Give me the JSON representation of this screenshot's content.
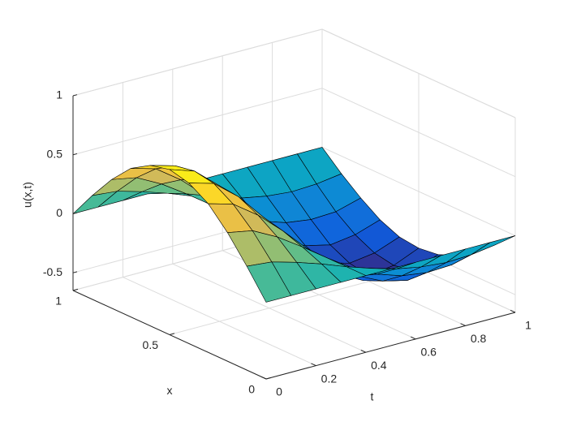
{
  "chart_data": {
    "type": "surface",
    "xlabel": "x",
    "ylabel": "t",
    "zlabel": "u(x,t)",
    "x": [
      0,
      0.1,
      0.2,
      0.3,
      0.4,
      0.5,
      0.6,
      0.7,
      0.8,
      0.9,
      1
    ],
    "y": [
      0,
      0.1,
      0.2,
      0.3,
      0.4,
      0.5,
      0.6,
      0.7,
      0.8,
      0.9,
      1
    ],
    "z": [
      [
        0,
        0,
        0,
        0,
        0,
        0,
        0,
        0,
        0,
        0,
        0
      ],
      [
        0.23,
        0.21,
        0.15,
        0.08,
        0,
        -0.07,
        -0.13,
        -0.17,
        -0.19,
        -0.18,
        -0.15
      ],
      [
        0.44,
        0.4,
        0.29,
        0.15,
        0,
        -0.14,
        -0.25,
        -0.32,
        -0.35,
        -0.34,
        -0.28
      ],
      [
        0.61,
        0.55,
        0.4,
        0.21,
        0,
        -0.19,
        -0.34,
        -0.44,
        -0.49,
        -0.46,
        -0.39
      ],
      [
        0.71,
        0.65,
        0.48,
        0.25,
        0,
        -0.23,
        -0.4,
        -0.51,
        -0.57,
        -0.54,
        -0.46
      ],
      [
        0.75,
        0.68,
        0.5,
        0.26,
        0,
        -0.24,
        -0.42,
        -0.54,
        -0.6,
        -0.57,
        -0.48
      ],
      [
        0.71,
        0.65,
        0.48,
        0.25,
        0,
        -0.23,
        -0.4,
        -0.51,
        -0.57,
        -0.54,
        -0.46
      ],
      [
        0.61,
        0.55,
        0.4,
        0.21,
        0,
        -0.19,
        -0.34,
        -0.44,
        -0.49,
        -0.46,
        -0.39
      ],
      [
        0.44,
        0.4,
        0.29,
        0.15,
        0,
        -0.14,
        -0.25,
        -0.32,
        -0.35,
        -0.34,
        -0.28
      ],
      [
        0.23,
        0.21,
        0.15,
        0.08,
        0,
        -0.07,
        -0.13,
        -0.17,
        -0.19,
        -0.18,
        -0.15
      ],
      [
        0,
        0,
        0,
        0,
        0,
        0,
        0,
        0,
        0,
        0,
        0
      ]
    ],
    "xlim": [
      0,
      1
    ],
    "ylim": [
      0,
      1
    ],
    "zlim": [
      -0.65,
      1
    ],
    "xticks": [
      0,
      0.5,
      1
    ],
    "yticks": [
      0,
      0.2,
      0.4,
      0.6,
      0.8,
      1
    ],
    "zticks": [
      -0.5,
      0,
      0.5,
      1
    ],
    "grid": true,
    "colormap": "parula",
    "edgecolor": "#000000"
  }
}
